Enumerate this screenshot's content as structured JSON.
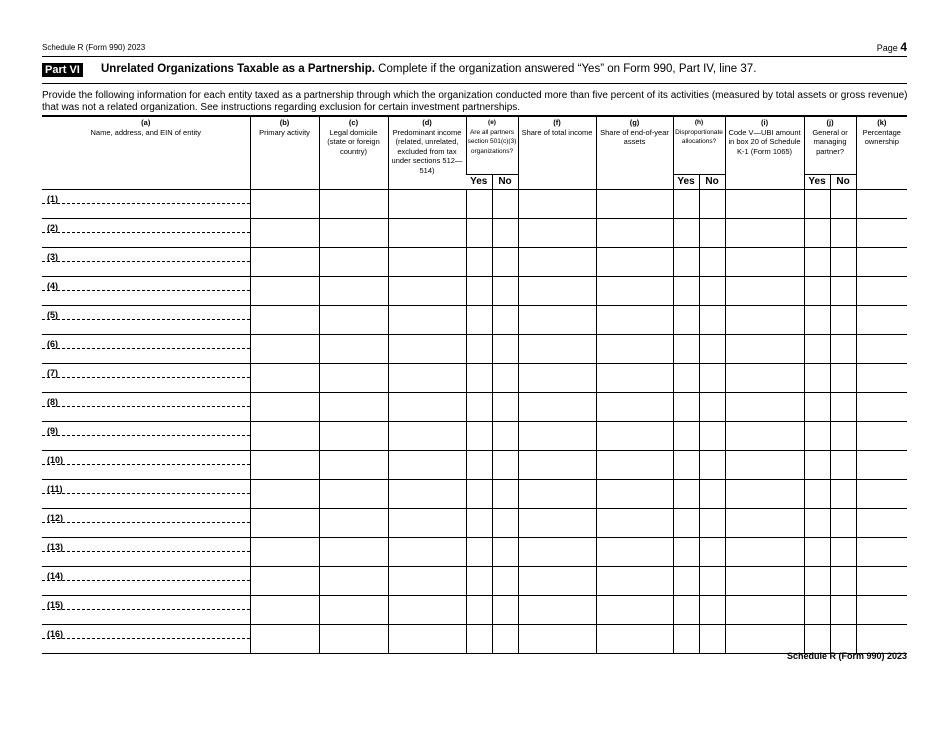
{
  "header": {
    "form_label": "Schedule R (Form 990) 2023",
    "page_label": "Page",
    "page_number": "4"
  },
  "part": {
    "label": "Part VI",
    "title": "Unrelated Organizations Taxable as a Partnership.",
    "subtitle": " Complete if the organization answered “Yes” on Form 990, Part IV, line 37."
  },
  "intro": "Provide the following information for each entity taxed as a partnership through which the organization conducted more than five percent of its activities (measured by total assets or gross revenue) that was not a related organization. See instructions regarding exclusion for certain investment partnerships.",
  "columns": [
    {
      "letter": "(a)",
      "text": "Name, address, and EIN of entity"
    },
    {
      "letter": "(b)",
      "text": "Primary activity"
    },
    {
      "letter": "(c)",
      "text": "Legal domicile (state or foreign country)"
    },
    {
      "letter": "(d)",
      "text": "Predominant income (related, unrelated, excluded from tax under sections 512—514)"
    },
    {
      "letter": "(e)",
      "text": "Are all partners section 501(c)(3) organizations?"
    },
    {
      "letter": "(f)",
      "text": "Share of total income"
    },
    {
      "letter": "(g)",
      "text": "Share of end-of-year assets"
    },
    {
      "letter": "(h)",
      "text": "Disproportionate allocations?"
    },
    {
      "letter": "(i)",
      "text": "Code V—UBI amount in box 20 of Schedule K-1 (Form 1065)"
    },
    {
      "letter": "(j)",
      "text": "General or managing partner?"
    },
    {
      "letter": "(k)",
      "text": "Percentage ownership"
    }
  ],
  "yes_label": "Yes",
  "no_label": "No",
  "rows": [
    "(1)",
    "(2)",
    "(3)",
    "(4)",
    "(5)",
    "(6)",
    "(7)",
    "(8)",
    "(9)",
    "(10)",
    "(11)",
    "(12)",
    "(13)",
    "(14)",
    "(15)",
    "(16)"
  ],
  "footer": "Schedule R (Form 990) 2023"
}
